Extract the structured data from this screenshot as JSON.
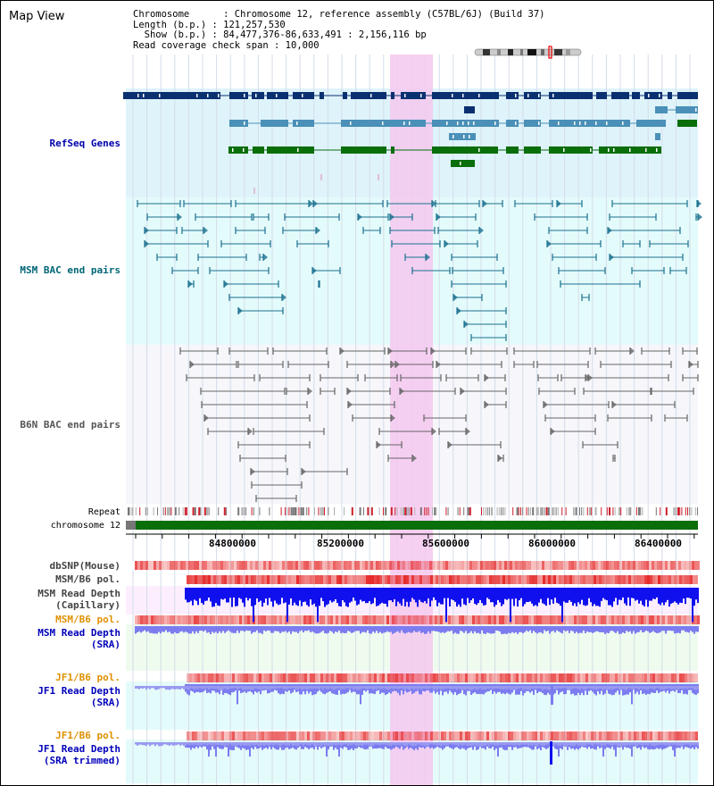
{
  "map_view": {
    "title": "Map View",
    "info": {
      "line1": "Chromosome      : Chromosome 12, reference assembly (C57BL/6J) (Build 37)",
      "line2": "Length (b.p.) : 121,257,530",
      "line3": "  Show (b.p.) : 84,477,376-86,633,491 : 2,156,116 bp",
      "line4": "Read coverage check span : 10,000"
    }
  },
  "tracks": {
    "refseq": {
      "label": "RefSeq Genes",
      "color": "#0000aa"
    },
    "msm_bac": {
      "label": "MSM BAC end pairs",
      "color": "#006677"
    },
    "b6n_bac": {
      "label": "B6N BAC end pairs",
      "color": "#555555"
    },
    "repeat": {
      "label": "Repeat"
    },
    "chromosome": {
      "label": "chromosome 12"
    },
    "dbsnp": {
      "label": "dbSNP(Mouse)",
      "color": "#444444"
    },
    "msm_b6_pol_cap": {
      "label": "MSM/B6 pol.",
      "color": "#444444"
    },
    "msm_read_depth_cap": {
      "line1": "MSM Read Depth",
      "line2": "(Capillary)",
      "color": "#444444"
    },
    "msm_b6_pol_sra": {
      "label": "MSM/B6 pol.",
      "color": "#e09000"
    },
    "msm_read_depth_sra": {
      "line1": "MSM Read Depth",
      "line2": "(SRA)",
      "color": "#0000bb"
    },
    "jf1_b6_pol": {
      "label": "JF1/B6 pol.",
      "color": "#e09000"
    },
    "jf1_read_depth": {
      "line1": "JF1 Read Depth",
      "line2": "(SRA)",
      "color": "#0000bb"
    },
    "jf1_b6_pol_2": {
      "label": "JF1/B6 pol.",
      "color": "#e09000"
    },
    "jf1_read_depth_trim": {
      "line1": "JF1 Read Depth",
      "line2": "(SRA trimmed)",
      "color": "#0000bb"
    }
  },
  "axis": {
    "ticks": [
      "84800000",
      "85200000",
      "85600000",
      "86000000",
      "86400000"
    ]
  },
  "colors": {
    "refseq_dark": "#0a3070",
    "refseq_mid": "#4a90b8",
    "refseq_green": "#0a6e0a",
    "msm_line": "#1a7090",
    "b6n_line": "#666666",
    "highlight": "#f5c8ee",
    "chrom_green": "#0a6e0a",
    "depth_blue": "#1010ee",
    "depth_light": "#7c7cf0"
  }
}
